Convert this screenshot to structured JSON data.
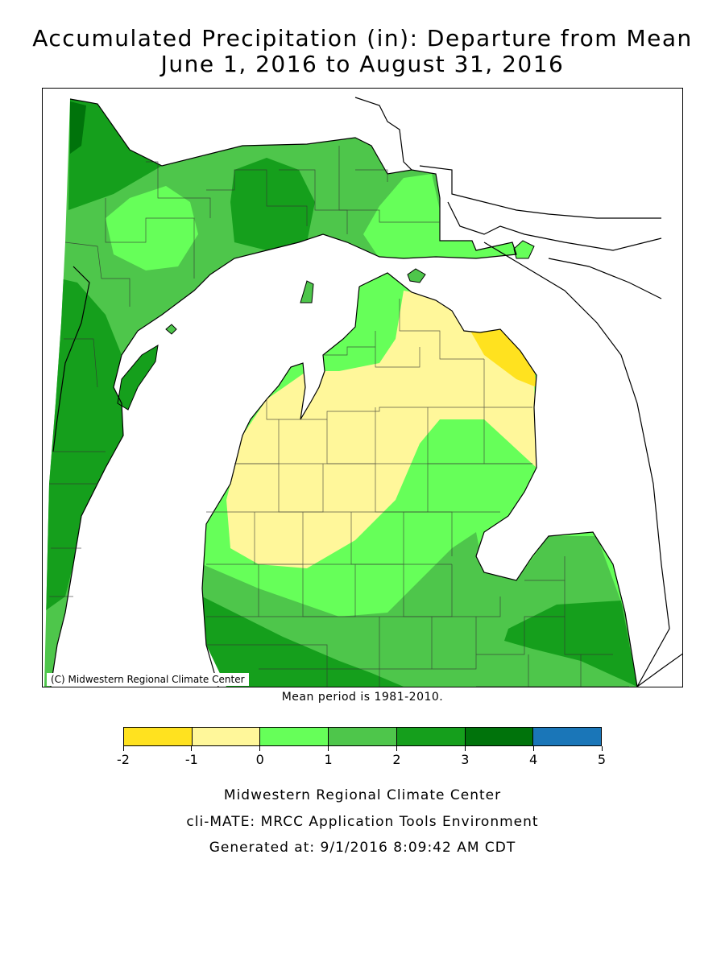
{
  "title": {
    "line1": "Accumulated Precipitation (in): Departure from Mean",
    "line2": "June 1, 2016 to August 31, 2016"
  },
  "map": {
    "region": "Michigan",
    "copyright": "(C) Midwestern Regional Climate Center"
  },
  "mean_note": "Mean period is 1981-2010.",
  "legend": {
    "bins": [
      {
        "min": -2,
        "max": -1,
        "color": "#ffe21f"
      },
      {
        "min": -1,
        "max": 0,
        "color": "#fff79a"
      },
      {
        "min": 0,
        "max": 1,
        "color": "#66ff59"
      },
      {
        "min": 1,
        "max": 2,
        "color": "#4ec64b"
      },
      {
        "min": 2,
        "max": 3,
        "color": "#159f1c"
      },
      {
        "min": 3,
        "max": 4,
        "color": "#00730b"
      },
      {
        "min": 4,
        "max": 5,
        "color": "#1a76b8"
      }
    ],
    "tick_labels": [
      "-2",
      "-1",
      "0",
      "1",
      "2",
      "3",
      "4",
      "5"
    ]
  },
  "footer": {
    "line1": "Midwestern Regional Climate Center",
    "line2": "cli-MATE: MRCC Application Tools Environment",
    "line3": "Generated at: 9/1/2016 8:09:42 AM CDT"
  }
}
